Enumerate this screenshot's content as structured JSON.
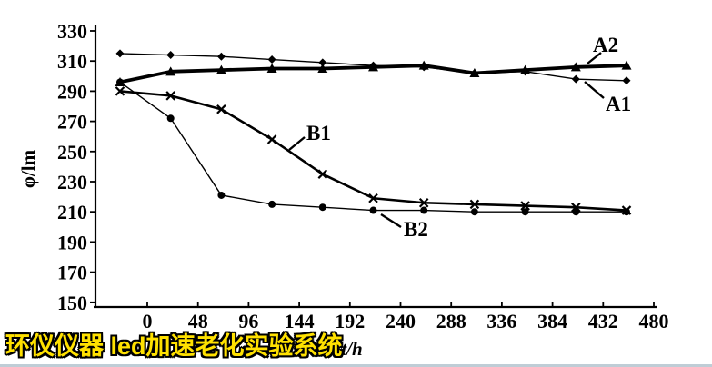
{
  "chart_data": {
    "type": "line",
    "title": "",
    "xlabel": "t/h",
    "ylabel": "φ/lm",
    "x": [
      0,
      48,
      96,
      144,
      192,
      240,
      288,
      336,
      384,
      432,
      480
    ],
    "x_tick_labels": [
      "0",
      "48",
      "96",
      "144",
      "192",
      "240",
      "288",
      "336",
      "384",
      "432",
      "480"
    ],
    "y_tick_labels": [
      "330",
      "310",
      "290",
      "270",
      "250",
      "230",
      "210",
      "190",
      "170",
      "150"
    ],
    "y_tick_values": [
      330,
      310,
      290,
      270,
      250,
      230,
      210,
      190,
      170,
      150
    ],
    "xlim": [
      0,
      480
    ],
    "ylim": [
      150,
      330
    ],
    "grid": false,
    "line_color": "#000000",
    "legend_position": "inline-annotations",
    "series": [
      {
        "name": "A1",
        "marker": "diamond",
        "line": "thin",
        "values": [
          315,
          314,
          313,
          311,
          309,
          307,
          306,
          302,
          303,
          298,
          297
        ]
      },
      {
        "name": "A2",
        "marker": "triangle",
        "line": "thick",
        "values": [
          296,
          303,
          304,
          305,
          305,
          306,
          307,
          302,
          304,
          306,
          307
        ]
      },
      {
        "name": "B1",
        "marker": "x",
        "line": "medium",
        "values": [
          290,
          287,
          278,
          258,
          235,
          219,
          216,
          215,
          214,
          213,
          211
        ]
      },
      {
        "name": "B2",
        "marker": "circle",
        "line": "thin",
        "values": [
          296,
          272,
          221,
          215,
          213,
          211,
          211,
          210,
          210,
          210,
          210
        ]
      }
    ]
  },
  "watermark": {
    "text": "环仪仪器 led加速老化实验系统",
    "fill_color": "#ffe100",
    "outline_color": "#000000"
  }
}
